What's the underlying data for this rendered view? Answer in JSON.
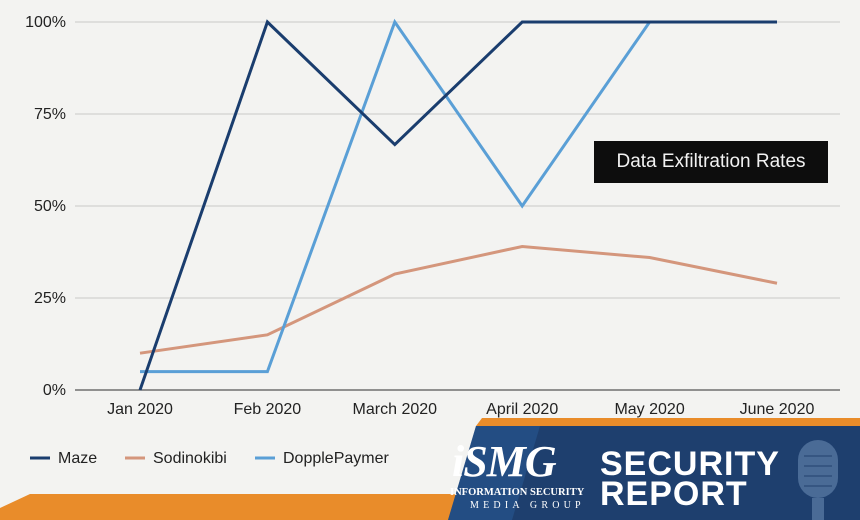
{
  "chart_data": {
    "type": "line",
    "categories": [
      "Jan 2020",
      "Feb 2020",
      "March 2020",
      "April 2020",
      "May 2020",
      "June 2020"
    ],
    "y_ticks": [
      "0%",
      "25%",
      "50%",
      "75%",
      "100%"
    ],
    "ylim": [
      0,
      100
    ],
    "grid": true,
    "legend_placement": "bottom-left",
    "annotation": "Data Exfiltration Rates",
    "series": [
      {
        "name": "Maze",
        "color": "#1a3d6e",
        "values": [
          0,
          100,
          66.7,
          100,
          100,
          100
        ]
      },
      {
        "name": "Sodinokibi",
        "color": "#d4967c",
        "values": [
          10,
          15,
          31.5,
          39,
          36,
          29
        ]
      },
      {
        "name": "DopplePaymer",
        "color": "#5a9fd6",
        "values": [
          5,
          5,
          100,
          50,
          100,
          100
        ]
      }
    ]
  },
  "banner": {
    "brand": "iSMG",
    "brand_line_1": "INFORMATION SECURITY",
    "brand_line_2": "MEDIA GROUP",
    "title_line_1": "SECURITY",
    "title_line_2": "REPORT",
    "colors": {
      "navy": "#1e3f6e",
      "blue": "#2a5f9e",
      "orange": "#e98c2a"
    },
    "icon": "microphone-icon"
  }
}
